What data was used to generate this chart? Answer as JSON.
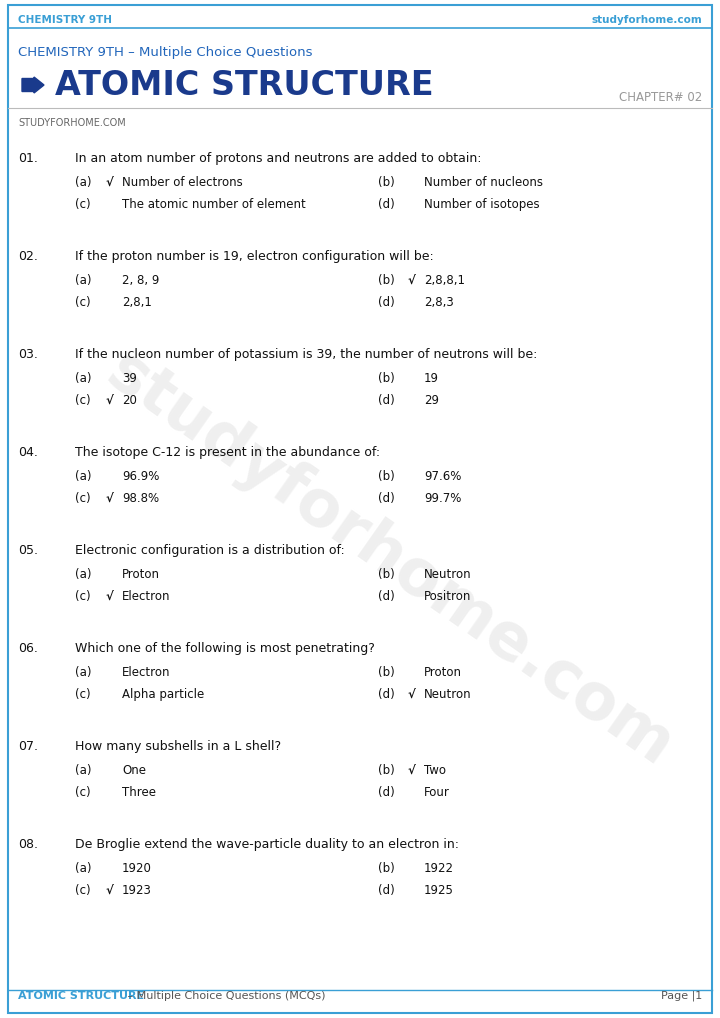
{
  "bg_color": "#ffffff",
  "border_color": "#3a9fd5",
  "header_top_text_left": "CHEMISTRY 9TH",
  "header_top_text_right": "studyforhome.com",
  "header_top_color": "#3a9fd5",
  "subtitle": "CHEMISTRY 9TH – Multiple Choice Questions",
  "subtitle_color": "#2266bb",
  "title": "ATOMIC STRUCTURE",
  "title_color": "#1a3a8c",
  "chapter": "CHAPTER# 02",
  "chapter_color": "#999999",
  "brand": "STUDYFORHOME.COM",
  "brand_color": "#666666",
  "footer_left_blue": "ATOMIC STRUCTURE",
  "footer_left_gray": " – Multiple Choice Questions (MCQs)",
  "footer_right": "Page |1",
  "footer_color_blue": "#3a9fd5",
  "footer_color_gray": "#555555",
  "watermark": "studyforhome.com",
  "questions": [
    {
      "num": "01.",
      "text": "In an atom number of protons and neutrons are added to obtain:",
      "options": [
        {
          "label": "(a)",
          "check": true,
          "text": "Number of electrons",
          "col": 0
        },
        {
          "label": "(b)",
          "check": false,
          "text": "Number of nucleons",
          "col": 1
        },
        {
          "label": "(c)",
          "check": false,
          "text": "The atomic number of element",
          "col": 0
        },
        {
          "label": "(d)",
          "check": false,
          "text": "Number of isotopes",
          "col": 1
        }
      ]
    },
    {
      "num": "02.",
      "text": "If the proton number is 19, electron configuration will be:",
      "options": [
        {
          "label": "(a)",
          "check": false,
          "text": "2, 8, 9",
          "col": 0
        },
        {
          "label": "(b)",
          "check": true,
          "text": "2,8,8,1",
          "col": 1
        },
        {
          "label": "(c)",
          "check": false,
          "text": "2,8,1",
          "col": 0
        },
        {
          "label": "(d)",
          "check": false,
          "text": "2,8,3",
          "col": 1
        }
      ]
    },
    {
      "num": "03.",
      "text": "If the nucleon number of potassium is 39, the number of neutrons will be:",
      "options": [
        {
          "label": "(a)",
          "check": false,
          "text": "39",
          "col": 0
        },
        {
          "label": "(b)",
          "check": false,
          "text": "19",
          "col": 1
        },
        {
          "label": "(c)",
          "check": true,
          "text": "20",
          "col": 0
        },
        {
          "label": "(d)",
          "check": false,
          "text": "29",
          "col": 1
        }
      ]
    },
    {
      "num": "04.",
      "text": "The isotope C-12 is present in the abundance of:",
      "options": [
        {
          "label": "(a)",
          "check": false,
          "text": "96.9%",
          "col": 0
        },
        {
          "label": "(b)",
          "check": false,
          "text": "97.6%",
          "col": 1
        },
        {
          "label": "(c)",
          "check": true,
          "text": "98.8%",
          "col": 0
        },
        {
          "label": "(d)",
          "check": false,
          "text": "99.7%",
          "col": 1
        }
      ]
    },
    {
      "num": "05.",
      "text": "Electronic configuration is a distribution of:",
      "options": [
        {
          "label": "(a)",
          "check": false,
          "text": "Proton",
          "col": 0
        },
        {
          "label": "(b)",
          "check": false,
          "text": "Neutron",
          "col": 1
        },
        {
          "label": "(c)",
          "check": true,
          "text": "Electron",
          "col": 0
        },
        {
          "label": "(d)",
          "check": false,
          "text": "Positron",
          "col": 1
        }
      ]
    },
    {
      "num": "06.",
      "text": "Which one of the following is most penetrating?",
      "options": [
        {
          "label": "(a)",
          "check": false,
          "text": "Electron",
          "col": 0
        },
        {
          "label": "(b)",
          "check": false,
          "text": "Proton",
          "col": 1
        },
        {
          "label": "(c)",
          "check": false,
          "text": "Alpha particle",
          "col": 0
        },
        {
          "label": "(d)",
          "check": true,
          "text": "Neutron",
          "col": 1
        }
      ]
    },
    {
      "num": "07.",
      "text": "How many subshells in a L shell?",
      "options": [
        {
          "label": "(a)",
          "check": false,
          "text": "One",
          "col": 0
        },
        {
          "label": "(b)",
          "check": true,
          "text": "Two",
          "col": 1
        },
        {
          "label": "(c)",
          "check": false,
          "text": "Three",
          "col": 0
        },
        {
          "label": "(d)",
          "check": false,
          "text": "Four",
          "col": 1
        }
      ]
    },
    {
      "num": "08.",
      "text": "De Broglie extend the wave-particle duality to an electron in:",
      "options": [
        {
          "label": "(a)",
          "check": false,
          "text": "1920",
          "col": 0
        },
        {
          "label": "(b)",
          "check": false,
          "text": "1922",
          "col": 1
        },
        {
          "label": "(c)",
          "check": true,
          "text": "1923",
          "col": 0
        },
        {
          "label": "(d)",
          "check": false,
          "text": "1925",
          "col": 1
        }
      ]
    }
  ]
}
